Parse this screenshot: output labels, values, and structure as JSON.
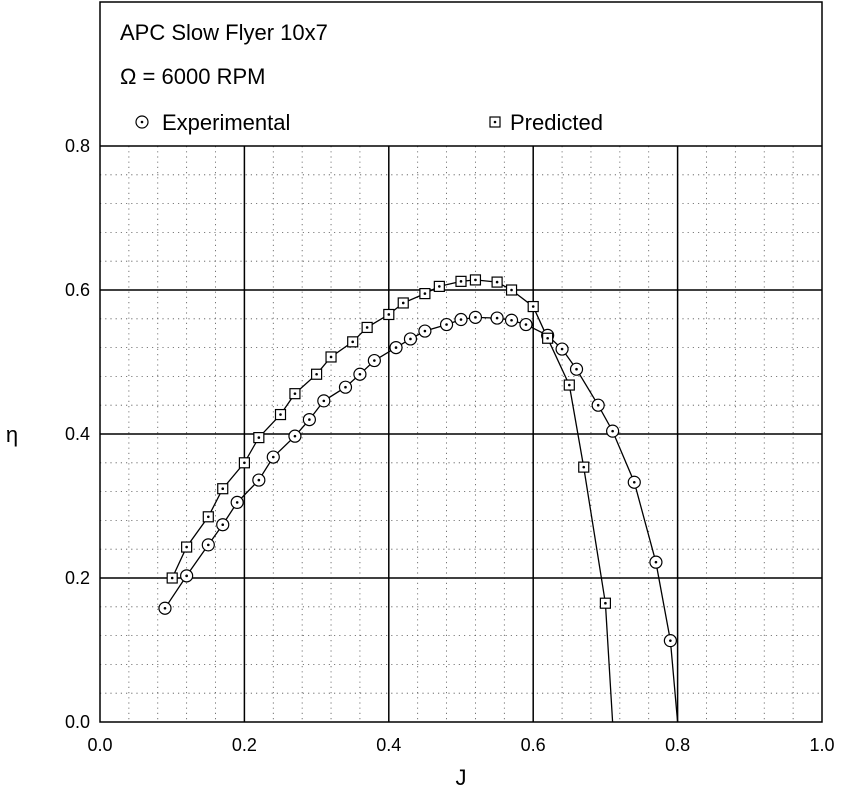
{
  "chart_data": {
    "type": "line",
    "title": "APC Slow Flyer 10x7",
    "subtitle": "Ω = 6000 RPM",
    "xlabel": "J",
    "ylabel": "η",
    "xlim": [
      0.0,
      1.0
    ],
    "ylim": [
      0.0,
      0.8
    ],
    "x_ticks": [
      "0.0",
      "0.2",
      "0.4",
      "0.6",
      "0.8",
      "1.0"
    ],
    "y_ticks": [
      "0.0",
      "0.2",
      "0.4",
      "0.6",
      "0.8"
    ],
    "grid": true,
    "legend_position": "top",
    "series": [
      {
        "name": "Experimental",
        "marker": "circle-dot",
        "points": [
          [
            0.09,
            0.158
          ],
          [
            0.12,
            0.203
          ],
          [
            0.15,
            0.246
          ],
          [
            0.17,
            0.274
          ],
          [
            0.19,
            0.305
          ],
          [
            0.22,
            0.336
          ],
          [
            0.24,
            0.368
          ],
          [
            0.27,
            0.397
          ],
          [
            0.29,
            0.42
          ],
          [
            0.31,
            0.446
          ],
          [
            0.34,
            0.465
          ],
          [
            0.36,
            0.483
          ],
          [
            0.38,
            0.502
          ],
          [
            0.41,
            0.52
          ],
          [
            0.43,
            0.532
          ],
          [
            0.45,
            0.543
          ],
          [
            0.48,
            0.552
          ],
          [
            0.5,
            0.559
          ],
          [
            0.52,
            0.562
          ],
          [
            0.55,
            0.561
          ],
          [
            0.57,
            0.558
          ],
          [
            0.59,
            0.552
          ],
          [
            0.62,
            0.537
          ],
          [
            0.64,
            0.518
          ],
          [
            0.66,
            0.49
          ],
          [
            0.69,
            0.44
          ],
          [
            0.71,
            0.404
          ],
          [
            0.74,
            0.333
          ],
          [
            0.77,
            0.222
          ],
          [
            0.79,
            0.113
          ],
          [
            0.8,
            0.0
          ]
        ]
      },
      {
        "name": "Predicted",
        "marker": "square-dot",
        "points": [
          [
            0.1,
            0.2
          ],
          [
            0.12,
            0.243
          ],
          [
            0.15,
            0.285
          ],
          [
            0.17,
            0.324
          ],
          [
            0.2,
            0.36
          ],
          [
            0.22,
            0.395
          ],
          [
            0.25,
            0.427
          ],
          [
            0.27,
            0.456
          ],
          [
            0.3,
            0.483
          ],
          [
            0.32,
            0.507
          ],
          [
            0.35,
            0.528
          ],
          [
            0.37,
            0.548
          ],
          [
            0.4,
            0.566
          ],
          [
            0.42,
            0.582
          ],
          [
            0.45,
            0.595
          ],
          [
            0.47,
            0.605
          ],
          [
            0.5,
            0.612
          ],
          [
            0.52,
            0.614
          ],
          [
            0.55,
            0.611
          ],
          [
            0.57,
            0.6
          ],
          [
            0.6,
            0.577
          ],
          [
            0.62,
            0.533
          ],
          [
            0.65,
            0.468
          ],
          [
            0.67,
            0.354
          ],
          [
            0.7,
            0.165
          ],
          [
            0.71,
            0.0
          ]
        ]
      }
    ]
  }
}
